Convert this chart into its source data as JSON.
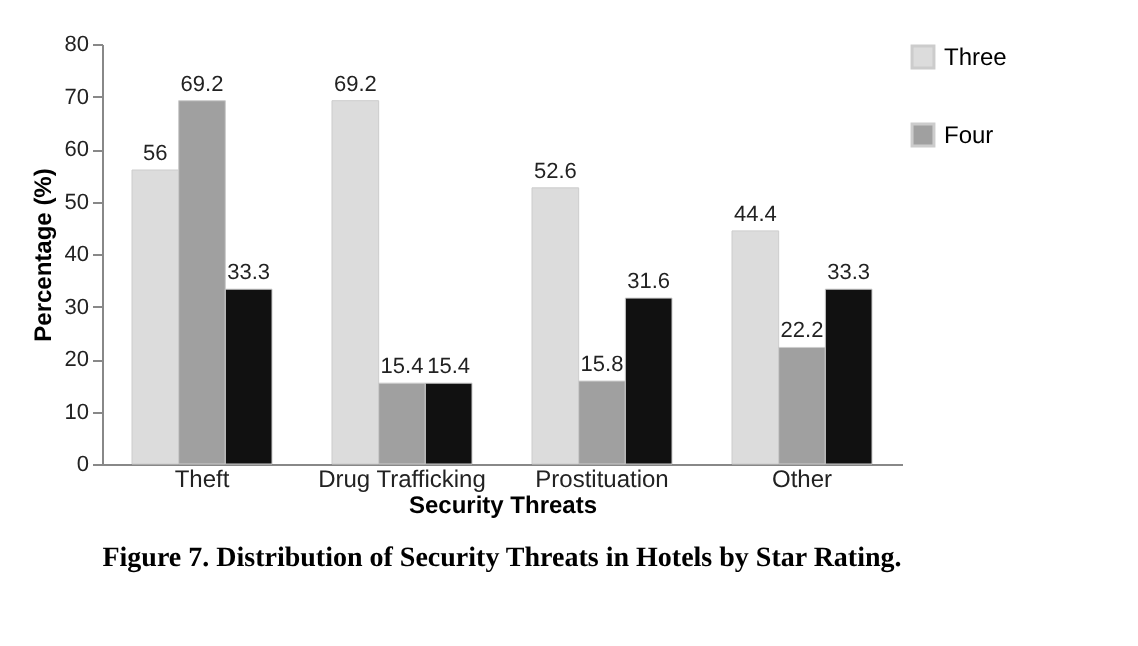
{
  "chart_data": {
    "type": "bar",
    "title": "Figure 7. Distribution of Security Threats in Hotels by Star Rating.",
    "xlabel": "Security Threats",
    "ylabel": "Percentage (%)",
    "categories": [
      "Theft",
      "Drug Trafficking",
      "Prostituation",
      "Other"
    ],
    "series": [
      {
        "name": "Three",
        "color": "#dcdcdc",
        "values": [
          56,
          69.2,
          52.6,
          44.4
        ]
      },
      {
        "name": "Four",
        "color": "#a0a0a0",
        "values": [
          69.2,
          15.4,
          15.8,
          22.2
        ]
      },
      {
        "color": "#111111",
        "values": [
          33.3,
          15.4,
          31.6,
          33.3
        ]
      }
    ],
    "ylim": [
      0,
      80
    ],
    "yticks": [
      0,
      10,
      20,
      30,
      40,
      50,
      60,
      70,
      80
    ],
    "grid": false,
    "legend": "right",
    "data_labels": true
  }
}
